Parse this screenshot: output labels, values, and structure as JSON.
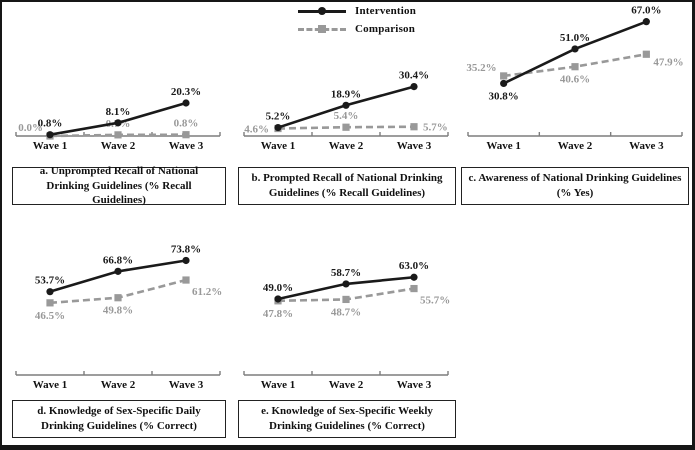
{
  "legend": {
    "items": [
      {
        "key": "intervention",
        "label": "Intervention"
      },
      {
        "key": "comparison",
        "label": "Comparison"
      }
    ]
  },
  "colors": {
    "intervention": "#1a1a1a",
    "comparison": "#999999"
  },
  "chart_data": [
    {
      "id": "a",
      "type": "line",
      "title": "a. Unprompted Recall of National Drinking Guidelines (% Recall Guidelines)",
      "categories": [
        "Wave 1",
        "Wave 2",
        "Wave 3"
      ],
      "ylim": [
        0,
        48
      ],
      "series": [
        {
          "key": "intervention",
          "name": "Intervention",
          "marker": "circle",
          "style": "solid",
          "values": [
            0.8,
            8.1,
            20.3
          ],
          "labels": [
            "0.8%",
            "8.1%",
            "20.3%"
          ],
          "label_pos": [
            "above",
            "above",
            "above"
          ]
        },
        {
          "key": "comparison",
          "name": "Comparison",
          "marker": "square",
          "style": "dashed",
          "values": [
            0.0,
            0.7,
            0.8
          ],
          "labels": [
            "0.0%",
            "0.7%",
            "0.8%"
          ],
          "label_pos": [
            "left-above",
            "above",
            "above"
          ]
        }
      ]
    },
    {
      "id": "b",
      "type": "line",
      "title": "b. Prompted Recall of National Drinking Guidelines (% Recall Guidelines)",
      "categories": [
        "Wave 1",
        "Wave 2",
        "Wave 3"
      ],
      "ylim": [
        0,
        48
      ],
      "series": [
        {
          "key": "intervention",
          "name": "Intervention",
          "marker": "circle",
          "style": "solid",
          "values": [
            5.2,
            18.9,
            30.4
          ],
          "labels": [
            "5.2%",
            "18.9%",
            "30.4%"
          ],
          "label_pos": [
            "above",
            "above",
            "above"
          ]
        },
        {
          "key": "comparison",
          "name": "Comparison",
          "marker": "square",
          "style": "dashed",
          "values": [
            4.6,
            5.4,
            5.7
          ],
          "labels": [
            "4.6%",
            "5.4%",
            "5.7%"
          ],
          "label_pos": [
            "left",
            "above",
            "right"
          ]
        }
      ]
    },
    {
      "id": "c",
      "type": "line",
      "title": "c. Awareness of National Drinking Guidelines (% Yes)",
      "categories": [
        "Wave 1",
        "Wave 2",
        "Wave 3"
      ],
      "ylim": [
        0,
        75
      ],
      "series": [
        {
          "key": "intervention",
          "name": "Intervention",
          "marker": "circle",
          "style": "solid",
          "values": [
            30.8,
            51.0,
            67.0
          ],
          "labels": [
            "30.8%",
            "51.0%",
            "67.0%"
          ],
          "label_pos": [
            "below",
            "above",
            "above"
          ]
        },
        {
          "key": "comparison",
          "name": "Comparison",
          "marker": "square",
          "style": "dashed",
          "values": [
            35.2,
            40.6,
            47.9
          ],
          "labels": [
            "35.2%",
            "40.6%",
            "47.9%"
          ],
          "label_pos": [
            "left-above",
            "below",
            "right-below"
          ]
        }
      ]
    },
    {
      "id": "d",
      "type": "line",
      "title": "d. Knowledge of Sex-Specific Daily Drinking Guidelines (% Correct)",
      "categories": [
        "Wave 1",
        "Wave 2",
        "Wave 3"
      ],
      "ylim": [
        0,
        87
      ],
      "series": [
        {
          "key": "intervention",
          "name": "Intervention",
          "marker": "circle",
          "style": "solid",
          "values": [
            53.7,
            66.8,
            73.8
          ],
          "labels": [
            "53.7%",
            "66.8%",
            "73.8%"
          ],
          "label_pos": [
            "above",
            "above",
            "above"
          ]
        },
        {
          "key": "comparison",
          "name": "Comparison",
          "marker": "square",
          "style": "dashed",
          "values": [
            46.5,
            49.8,
            61.2
          ],
          "labels": [
            "46.5%",
            "49.8%",
            "61.2%"
          ],
          "label_pos": [
            "below",
            "below",
            "below-right"
          ]
        }
      ]
    },
    {
      "id": "e",
      "type": "line",
      "title": "e. Knowledge of Sex-Specific Weekly Drinking Guidelines (% Correct)",
      "categories": [
        "Wave 1",
        "Wave 2",
        "Wave 3"
      ],
      "ylim": [
        0,
        87
      ],
      "series": [
        {
          "key": "intervention",
          "name": "Intervention",
          "marker": "circle",
          "style": "solid",
          "values": [
            49.0,
            58.7,
            63.0
          ],
          "labels": [
            "49.0%",
            "58.7%",
            "63.0%"
          ],
          "label_pos": [
            "above",
            "above",
            "above"
          ]
        },
        {
          "key": "comparison",
          "name": "Comparison",
          "marker": "square",
          "style": "dashed",
          "values": [
            47.8,
            48.7,
            55.7
          ],
          "labels": [
            "47.8%",
            "48.7%",
            "55.7%"
          ],
          "label_pos": [
            "below",
            "below",
            "below-right"
          ]
        }
      ]
    }
  ]
}
